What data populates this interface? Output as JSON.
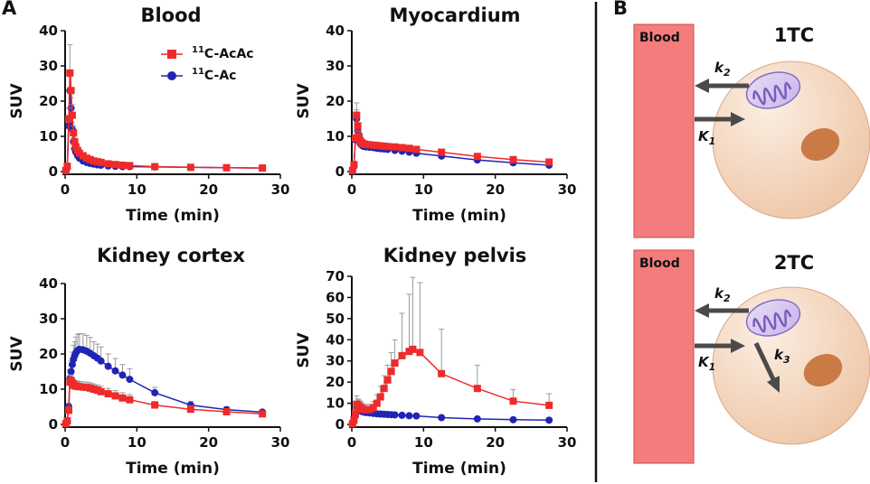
{
  "panels": {
    "a": "A",
    "b": "B"
  },
  "legend": [
    {
      "pre": "11",
      "name": "C-AcAc",
      "color": "#ee2a2a",
      "marker": "square"
    },
    {
      "pre": "11",
      "name": "C-Ac",
      "color": "#2024b4",
      "marker": "circle"
    }
  ],
  "chart_data": [
    {
      "type": "line",
      "title": "Blood",
      "xlabel": "Time (min)",
      "ylabel": "SUV",
      "xlim": [
        0,
        30
      ],
      "ylim": [
        0,
        40
      ],
      "xticks": [
        0,
        10,
        20,
        30
      ],
      "yticks": [
        0,
        10,
        20,
        30,
        40
      ],
      "series": [
        {
          "name": "11C-AcAc",
          "x": [
            0.1,
            0.3,
            0.5,
            0.67,
            0.83,
            1.0,
            1.17,
            1.33,
            1.5,
            1.75,
            2.0,
            2.5,
            3.0,
            3.5,
            4.0,
            4.5,
            5.0,
            6.0,
            7.0,
            8.0,
            9.0,
            12.5,
            17.5,
            22.5,
            27.5
          ],
          "y": [
            0.3,
            1.5,
            15.0,
            28.0,
            23.0,
            16.0,
            11.0,
            8.5,
            7.0,
            6.0,
            5.2,
            4.5,
            3.8,
            3.4,
            3.0,
            2.8,
            2.6,
            2.2,
            2.0,
            1.8,
            1.7,
            1.4,
            1.2,
            1.1,
            1.0
          ],
          "err": [
            0,
            0,
            3.0,
            8.0,
            5.0,
            3.0,
            2.0,
            1.5,
            1.0,
            0.5,
            0,
            0,
            0,
            0,
            0,
            0,
            0,
            0,
            0,
            0,
            0,
            0,
            0,
            0,
            0
          ]
        },
        {
          "name": "11C-Ac",
          "x": [
            0.1,
            0.3,
            0.5,
            0.67,
            0.83,
            1.0,
            1.17,
            1.33,
            1.5,
            1.75,
            2.0,
            2.5,
            3.0,
            3.5,
            4.0,
            4.5,
            5.0,
            6.0,
            7.0,
            8.0,
            9.0,
            12.5,
            17.5,
            22.5,
            27.5
          ],
          "y": [
            0.2,
            1.0,
            13.0,
            23.0,
            18.0,
            12.0,
            8.5,
            6.5,
            5.5,
            4.5,
            3.8,
            3.0,
            2.6,
            2.3,
            2.1,
            1.9,
            1.8,
            1.6,
            1.5,
            1.4,
            1.4,
            1.3,
            1.2,
            1.1,
            1.0
          ],
          "err": [
            0,
            0,
            2.0,
            4.0,
            3.0,
            2.0,
            1.0,
            0.5,
            0,
            0,
            0,
            0,
            0,
            0,
            0,
            0,
            0,
            0,
            0,
            0,
            0,
            0,
            0,
            0,
            0
          ]
        }
      ]
    },
    {
      "type": "line",
      "title": "Myocardium",
      "xlabel": "Time (min)",
      "ylabel": "SUV",
      "xlim": [
        0,
        30
      ],
      "ylim": [
        0,
        40
      ],
      "xticks": [
        0,
        10,
        20,
        30
      ],
      "yticks": [
        0,
        10,
        20,
        30,
        40
      ],
      "series": [
        {
          "name": "11C-AcAc",
          "x": [
            0.1,
            0.3,
            0.5,
            0.67,
            0.83,
            1.0,
            1.17,
            1.33,
            1.5,
            1.75,
            2.0,
            2.5,
            3.0,
            3.5,
            4.0,
            4.5,
            5.0,
            6.0,
            7.0,
            8.0,
            9.0,
            12.5,
            17.5,
            22.5,
            27.5
          ],
          "y": [
            0.3,
            2.0,
            9.5,
            16.0,
            13.0,
            10.0,
            8.8,
            8.3,
            8.0,
            7.8,
            7.7,
            7.6,
            7.5,
            7.4,
            7.3,
            7.2,
            7.1,
            7.0,
            6.8,
            6.6,
            6.3,
            5.5,
            4.3,
            3.4,
            2.7
          ],
          "err": [
            0,
            0,
            2.0,
            3.5,
            2.5,
            1.5,
            1.0,
            0.8,
            0.8,
            0.8,
            0.8,
            0.8,
            0.8,
            0.8,
            0.8,
            0.8,
            0.8,
            0.8,
            0.8,
            0.8,
            0.8,
            0.6,
            0.6,
            0.5,
            0.5
          ]
        },
        {
          "name": "11C-Ac",
          "x": [
            0.1,
            0.3,
            0.5,
            0.67,
            0.83,
            1.0,
            1.17,
            1.33,
            1.5,
            1.75,
            2.0,
            2.5,
            3.0,
            3.5,
            4.0,
            4.5,
            5.0,
            6.0,
            7.0,
            8.0,
            9.0,
            12.5,
            17.5,
            22.5,
            27.5
          ],
          "y": [
            0.2,
            1.5,
            9.0,
            15.0,
            11.5,
            9.0,
            8.0,
            7.6,
            7.3,
            7.1,
            7.0,
            6.9,
            6.8,
            6.6,
            6.5,
            6.4,
            6.3,
            6.0,
            5.8,
            5.5,
            5.2,
            4.4,
            3.3,
            2.5,
            1.8
          ],
          "err": [
            0,
            0,
            1.5,
            2.5,
            1.5,
            1.0,
            0.5,
            0.3,
            0,
            0,
            0,
            0,
            0,
            0,
            0,
            0,
            0,
            0,
            0,
            0,
            0,
            0,
            0,
            0,
            0
          ]
        }
      ]
    },
    {
      "type": "line",
      "title": "Kidney cortex",
      "xlabel": "Time (min)",
      "ylabel": "SUV",
      "xlim": [
        0,
        30
      ],
      "ylim": [
        0,
        40
      ],
      "xticks": [
        0,
        10,
        20,
        30
      ],
      "yticks": [
        0,
        10,
        20,
        30,
        40
      ],
      "series": [
        {
          "name": "11C-AcAc",
          "x": [
            0.1,
            0.3,
            0.5,
            0.67,
            0.83,
            1.0,
            1.17,
            1.33,
            1.5,
            1.75,
            2.0,
            2.5,
            3.0,
            3.5,
            4.0,
            4.5,
            5.0,
            6.0,
            7.0,
            8.0,
            9.0,
            12.5,
            17.5,
            22.5,
            27.5
          ],
          "y": [
            0.2,
            1.0,
            4.0,
            12.0,
            12.5,
            11.8,
            11.2,
            11.0,
            10.9,
            10.8,
            10.7,
            10.6,
            10.5,
            10.3,
            10.0,
            9.7,
            9.3,
            8.7,
            8.1,
            7.5,
            7.0,
            5.5,
            4.3,
            3.6,
            3.0
          ],
          "err": [
            0,
            0,
            1.0,
            2.0,
            1.5,
            1.5,
            1.5,
            1.5,
            1.5,
            1.5,
            1.5,
            1.5,
            1.5,
            1.5,
            1.5,
            1.5,
            1.5,
            1.5,
            1.5,
            1.5,
            1.5,
            1.0,
            1.0,
            0.5,
            0.5
          ]
        },
        {
          "name": "11C-Ac",
          "x": [
            0.1,
            0.3,
            0.5,
            0.67,
            0.83,
            1.0,
            1.17,
            1.33,
            1.5,
            1.75,
            2.0,
            2.5,
            3.0,
            3.5,
            4.0,
            4.5,
            5.0,
            6.0,
            7.0,
            8.0,
            9.0,
            12.5,
            17.5,
            22.5,
            27.5
          ],
          "y": [
            0.2,
            1.0,
            5.0,
            13.0,
            15.0,
            17.0,
            18.5,
            19.5,
            20.3,
            21.0,
            21.3,
            21.2,
            20.8,
            20.2,
            19.5,
            18.8,
            18.0,
            16.5,
            15.2,
            14.0,
            12.8,
            9.0,
            5.5,
            4.2,
            3.5
          ],
          "err": [
            0,
            0,
            1.0,
            2.5,
            3.0,
            3.5,
            4.0,
            4.0,
            4.5,
            4.5,
            4.5,
            4.5,
            4.5,
            4.5,
            4.0,
            4.0,
            4.0,
            3.5,
            3.5,
            3.0,
            3.0,
            1.5,
            1.0,
            0.8,
            0.5
          ]
        }
      ]
    },
    {
      "type": "line",
      "title": "Kidney pelvis",
      "xlabel": "Time (min)",
      "ylabel": "SUV",
      "xlim": [
        0,
        30
      ],
      "ylim": [
        0,
        70
      ],
      "xticks": [
        0,
        10,
        20,
        30
      ],
      "yticks": [
        0,
        10,
        20,
        30,
        40,
        50,
        60,
        70
      ],
      "series": [
        {
          "name": "11C-AcAc",
          "x": [
            0.1,
            0.3,
            0.5,
            0.67,
            0.83,
            1.0,
            1.17,
            1.33,
            1.5,
            1.75,
            2.0,
            2.5,
            3.0,
            3.5,
            4.0,
            4.5,
            5.0,
            5.5,
            6.0,
            7.0,
            8.0,
            8.5,
            9.5,
            12.5,
            17.5,
            22.5,
            27.5
          ],
          "y": [
            0.3,
            2.0,
            5.0,
            9.5,
            9.0,
            8.5,
            8.0,
            7.5,
            7.2,
            7.0,
            6.8,
            7.0,
            7.8,
            10.0,
            13.0,
            17.0,
            21.0,
            25.0,
            29.0,
            32.5,
            34.5,
            35.5,
            34.0,
            24.0,
            17.0,
            11.0,
            9.0
          ],
          "err": [
            0,
            0,
            2.0,
            4.0,
            3.0,
            3.0,
            3.0,
            3.0,
            2.5,
            2.5,
            2.5,
            2.5,
            3.0,
            4.0,
            5.0,
            6.0,
            7.0,
            9.0,
            11.0,
            20.0,
            27.0,
            34.0,
            33.0,
            21.0,
            11.0,
            5.5,
            5.5
          ]
        },
        {
          "name": "11C-Ac",
          "x": [
            0.1,
            0.3,
            0.5,
            0.67,
            0.83,
            1.0,
            1.17,
            1.33,
            1.5,
            1.75,
            2.0,
            2.5,
            3.0,
            3.5,
            4.0,
            4.5,
            5.0,
            5.5,
            6.0,
            7.0,
            8.0,
            9.0,
            12.5,
            17.5,
            22.5,
            27.5
          ],
          "y": [
            0.2,
            1.5,
            4.0,
            8.0,
            7.5,
            7.0,
            6.5,
            6.2,
            6.0,
            5.8,
            5.6,
            5.4,
            5.2,
            5.0,
            4.9,
            4.8,
            4.7,
            4.6,
            4.5,
            4.3,
            4.1,
            4.0,
            3.2,
            2.6,
            2.2,
            2.0
          ],
          "err": [
            0,
            0,
            1.0,
            2.0,
            1.5,
            1.5,
            1.0,
            1.0,
            1.0,
            0.8,
            0.8,
            0.8,
            0.8,
            0.8,
            0.8,
            0.8,
            0.8,
            0.8,
            0.8,
            0.5,
            0.5,
            0.5,
            0,
            0,
            0,
            0
          ]
        }
      ]
    }
  ],
  "diagram": {
    "models": [
      {
        "title": "1TC",
        "blood_label": "Blood",
        "k_out": "k",
        "k_out_sub": "2",
        "k_in": "K",
        "k_in_sub": "1"
      },
      {
        "title": "2TC",
        "blood_label": "Blood",
        "k_out": "k",
        "k_out_sub": "2",
        "k_in": "K",
        "k_in_sub": "1",
        "k_met": "k",
        "k_met_sub": "3"
      }
    ]
  }
}
